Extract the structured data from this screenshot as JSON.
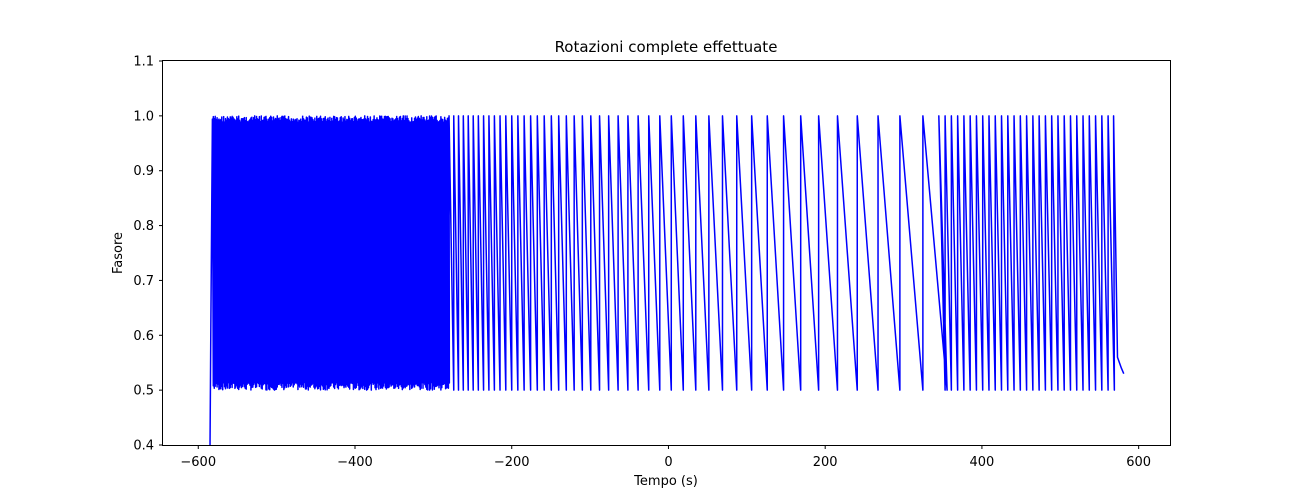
{
  "chart_data": {
    "type": "line",
    "title": "Rotazioni complete effettuate",
    "xlabel": "Tempo (s)",
    "ylabel": "Fasore",
    "xlim": [
      -645,
      640
    ],
    "ylim": [
      0.4,
      1.1
    ],
    "xticks": [
      -600,
      -400,
      -200,
      0,
      200,
      400,
      600
    ],
    "xtick_labels": [
      "−600",
      "−400",
      "−200",
      "0",
      "200",
      "400",
      "600"
    ],
    "yticks": [
      0.4,
      0.5,
      0.6,
      0.7,
      0.8,
      0.9,
      1.0,
      1.1
    ],
    "ytick_labels": [
      "0.4",
      "0.5",
      "0.6",
      "0.7",
      "0.8",
      "0.9",
      "1.0",
      "1.1"
    ],
    "grid": false,
    "series": [
      {
        "name": "Fasore",
        "color": "#0000ff",
        "description_points": {
          "start": [
            [
              -585,
              0.4
            ],
            [
              -584,
              0.605
            ],
            [
              -582,
              0.99
            ]
          ],
          "oscillation_range": [
            0.5,
            1.0
          ],
          "oscillation_segments": [
            {
              "from": -582,
              "to": -280,
              "period": 1.2
            },
            {
              "from": -280,
              "to": 345,
              "period_start": 6,
              "period_end": 32
            },
            {
              "from": 345,
              "to": 568,
              "period": 8
            }
          ],
          "end": [
            [
              568,
              1.0
            ],
            [
              573,
              0.56
            ],
            [
              578,
              0.54
            ],
            [
              581,
              0.53
            ]
          ]
        }
      }
    ]
  }
}
